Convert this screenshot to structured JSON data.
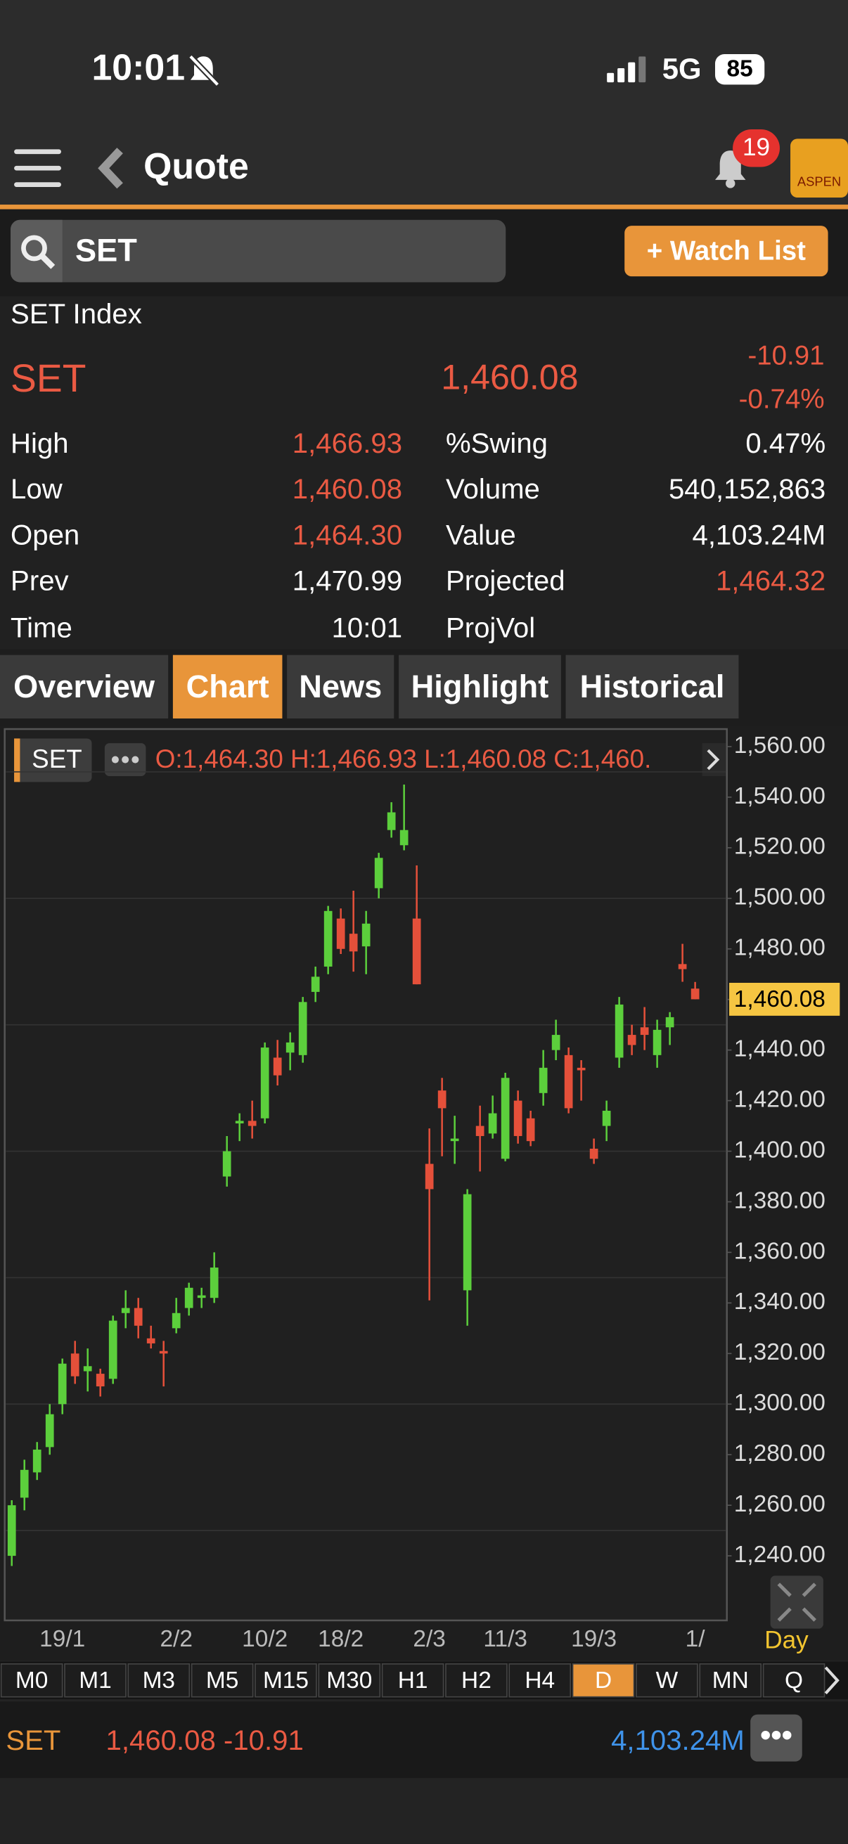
{
  "status": {
    "time": "10:01",
    "network": "5G",
    "battery": "85"
  },
  "header": {
    "title": "Quote",
    "badge": "19",
    "logo": "ASPEN"
  },
  "search": {
    "query": "SET",
    "button": "+ Watch List"
  },
  "quote": {
    "name": "SET Index",
    "symbol": "SET",
    "last": "1,460.08",
    "change": "-10.91",
    "change_pct": "-0.74%",
    "left": [
      [
        "High",
        "1,466.93"
      ],
      [
        "Low",
        "1,460.08"
      ],
      [
        "Open",
        "1,464.30"
      ],
      [
        "Prev",
        "1,470.99"
      ],
      [
        "Time",
        "10:01"
      ]
    ],
    "right": [
      [
        "%Swing",
        "0.47%"
      ],
      [
        "Volume",
        "540,152,863"
      ],
      [
        "Value",
        "4,103.24M"
      ],
      [
        "Projected",
        "1,464.32"
      ],
      [
        "ProjVol"
      ]
    ]
  },
  "tabs": [
    "Overview",
    "Chart",
    "News",
    "Highlight",
    "Historical"
  ],
  "chart_data": {
    "type": "candlestick",
    "symbol": "SET",
    "legend": "O:1,464.30  H:1,466.93  L:1,460.08  C:1,460.",
    "period": "Day",
    "categories": [
      null,
      null,
      null,
      null,
      "19/1",
      null,
      null,
      null,
      null,
      null,
      null,
      null,
      null,
      "2/2",
      null,
      null,
      null,
      null,
      null,
      null,
      "10/2",
      null,
      null,
      null,
      null,
      null,
      "18/2",
      null,
      null,
      null,
      null,
      null,
      null,
      "2/3",
      null,
      null,
      null,
      null,
      null,
      "11/3",
      null,
      null,
      null,
      null,
      null,
      null,
      "19/3",
      null,
      null,
      null,
      null,
      null,
      null,
      null,
      "1/"
    ],
    "open": [
      1240,
      1263,
      1273,
      1283,
      1300,
      1320,
      1313,
      1312,
      1310,
      1336,
      1338,
      1326,
      1321,
      1330,
      1338,
      1342,
      1342,
      1390,
      1411,
      1412,
      1413,
      1437,
      1439,
      1438,
      1463,
      1473,
      1492,
      1486,
      1481,
      1504,
      1527,
      1521,
      1492,
      1395,
      1424,
      1404,
      1345,
      1410,
      1407,
      1397,
      1420,
      1413,
      1423,
      1440,
      1438,
      1433,
      1401,
      1410,
      1437,
      1446,
      1449,
      1438,
      1449,
      1474,
      1464.3
    ],
    "high": [
      1262,
      1278,
      1285,
      1300,
      1318,
      1325,
      1322,
      1314,
      1335,
      1345,
      1342,
      1331,
      1325,
      1342,
      1348,
      1346,
      1360,
      1406,
      1415,
      1420,
      1443,
      1444,
      1447,
      1461,
      1473,
      1497,
      1496,
      1503,
      1495,
      1518,
      1538,
      1545,
      1513,
      1409,
      1429,
      1414,
      1385,
      1418,
      1422,
      1431,
      1424,
      1416,
      1440,
      1452,
      1441,
      1436,
      1405,
      1420,
      1461,
      1450,
      1457,
      1452,
      1455,
      1482,
      1466.93
    ],
    "low": [
      1236,
      1258,
      1270,
      1280,
      1296,
      1308,
      1305,
      1303,
      1308,
      1330,
      1326,
      1322,
      1307,
      1328,
      1335,
      1338,
      1340,
      1386,
      1404,
      1405,
      1411,
      1426,
      1432,
      1435,
      1459,
      1470,
      1478,
      1471,
      1470,
      1500,
      1524,
      1519,
      1466,
      1341,
      1398,
      1395,
      1331,
      1392,
      1405,
      1396,
      1403,
      1402,
      1418,
      1436,
      1415,
      1420,
      1395,
      1404,
      1433,
      1438,
      1440,
      1433,
      1442,
      1467,
      1460.08
    ],
    "close": [
      1260,
      1274,
      1282,
      1296,
      1316,
      1311,
      1315,
      1307,
      1333,
      1338,
      1331,
      1324,
      1320,
      1336,
      1346,
      1343,
      1354,
      1400,
      1412,
      1410,
      1441,
      1430,
      1443,
      1459,
      1469,
      1495,
      1480,
      1479,
      1490,
      1516,
      1534,
      1527,
      1466,
      1385,
      1417,
      1405,
      1383,
      1406,
      1415,
      1429,
      1406,
      1404,
      1433,
      1446,
      1417,
      1432,
      1397,
      1416,
      1458,
      1442,
      1446,
      1448,
      1453,
      1472,
      1460.08
    ],
    "up_color": "#5ccf3c",
    "down_color": "#e5503a",
    "ylim": [
      1214,
      1566
    ],
    "yticks": [
      {
        "value": 1240,
        "label": "1,240.00"
      },
      {
        "value": 1260,
        "label": "1,260.00"
      },
      {
        "value": 1280,
        "label": "1,280.00"
      },
      {
        "value": 1300,
        "label": "1,300.00"
      },
      {
        "value": 1320,
        "label": "1,320.00"
      },
      {
        "value": 1340,
        "label": "1,340.00"
      },
      {
        "value": 1360,
        "label": "1,360.00"
      },
      {
        "value": 1380,
        "label": "1,380.00"
      },
      {
        "value": 1400,
        "label": "1,400.00"
      },
      {
        "value": 1420,
        "label": "1,420.00"
      },
      {
        "value": 1440,
        "label": "1,440.00"
      },
      {
        "value": 1460,
        "label": "1,460.00"
      },
      {
        "value": 1480,
        "label": "1,480.00"
      },
      {
        "value": 1500,
        "label": "1,500.00"
      },
      {
        "value": 1520,
        "label": "1,520.00"
      },
      {
        "value": 1540,
        "label": "1,540.00"
      },
      {
        "value": 1560,
        "label": "1,560.00"
      }
    ],
    "ygrid": [
      1250,
      1300,
      1350,
      1400,
      1450,
      1500,
      1550
    ],
    "last_close_label": "1,460.08"
  },
  "timeframes": [
    "M0",
    "M1",
    "M3",
    "M5",
    "M15",
    "M30",
    "H1",
    "H2",
    "H4",
    "D",
    "W",
    "MN",
    "Q"
  ],
  "footer": {
    "symbol": "SET",
    "price": "1,460.08 -10.91",
    "value": "4,103.24M"
  }
}
